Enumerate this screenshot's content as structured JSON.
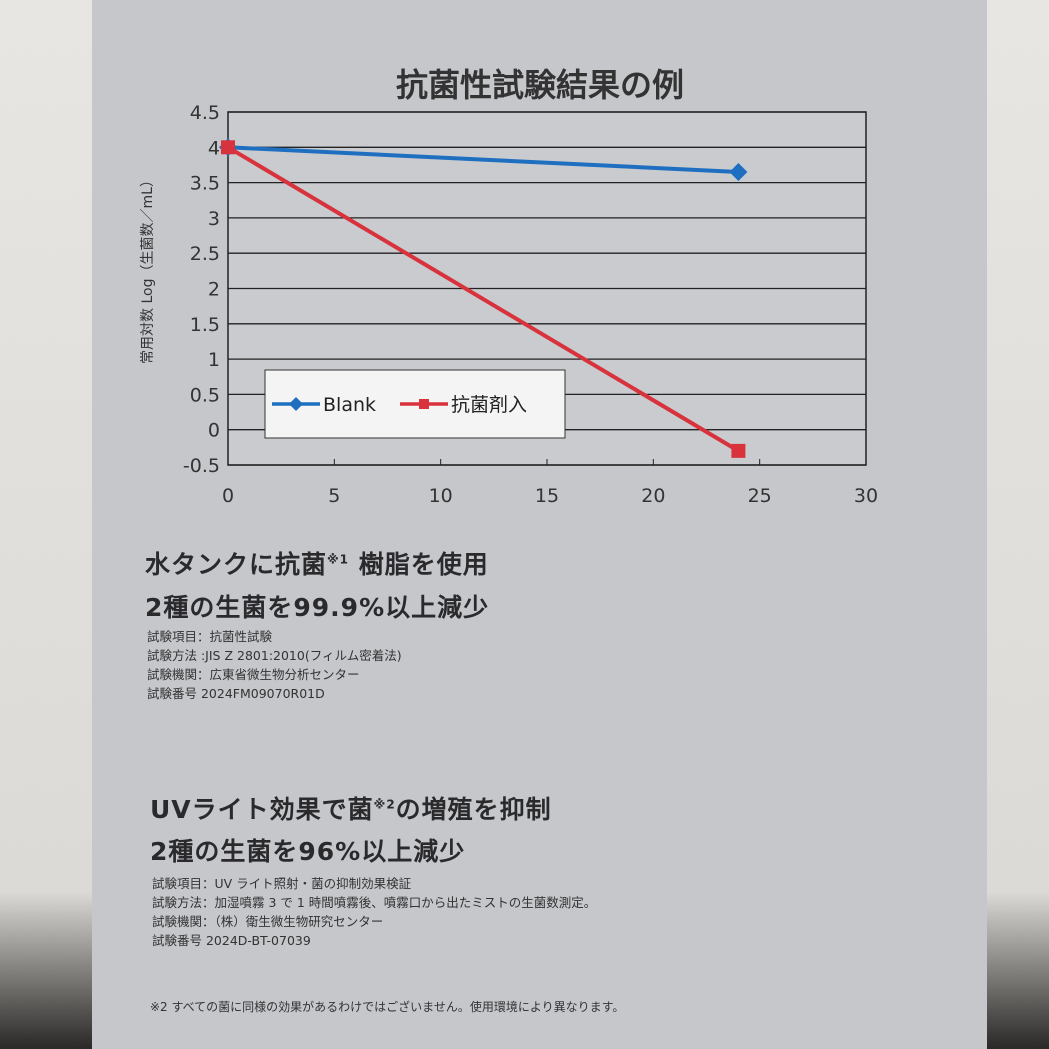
{
  "chart_data": {
    "type": "line",
    "title": "抗菌性試験結果の例",
    "ylabel": "常用対数 Log（生菌数／mL）",
    "xlabel": "",
    "xlim": [
      0,
      30
    ],
    "ylim": [
      -0.5,
      4.5
    ],
    "xticks": [
      "0",
      "5",
      "10",
      "15",
      "20",
      "25",
      "30"
    ],
    "yticks": [
      "4.5",
      "4",
      "3.5",
      "3",
      "2.5",
      "2",
      "1.5",
      "1",
      "0.5",
      "0",
      "-0.5"
    ],
    "grid": "horizontal",
    "legend": "center-left",
    "series": [
      {
        "name": "Blank",
        "color": "#1f6fc0",
        "marker": "diamond",
        "x": [
          0,
          24
        ],
        "y": [
          4.0,
          3.65
        ]
      },
      {
        "name": "抗菌剤入",
        "color": "#d8323c",
        "marker": "square",
        "x": [
          0,
          24
        ],
        "y": [
          4.0,
          -0.3
        ]
      }
    ]
  },
  "section1": {
    "heading1": "水タンクに抗菌",
    "sup": "※1",
    "heading1b": " 樹脂を使用",
    "heading2": "2種の生菌を99.9%以上減少",
    "lines": [
      "試験項目：抗菌性試験",
      "試験方法 :JIS Z 2801:2010(フィルム密着法)",
      "試験機関：広東省微生物分析センター",
      "試験番号 2024FM09070R01D"
    ]
  },
  "section2": {
    "heading1": "UVライト効果で菌",
    "sup": "※2",
    "heading1b": "の増殖を抑制",
    "heading2": "2種の生菌を96%以上減少",
    "lines": [
      "試験項目：UV ライト照射・菌の抑制効果検証",
      "試験方法：加湿噴霧 3 で 1 時間噴霧後、噴霧口から出たミストの生菌数測定。",
      "試験機関：（株）衛生微生物研究センター",
      "試験番号 2024D-BT-07039"
    ]
  },
  "footnote": "※2 すべての菌に同様の効果があるわけではございません。使用環境により異なります。"
}
